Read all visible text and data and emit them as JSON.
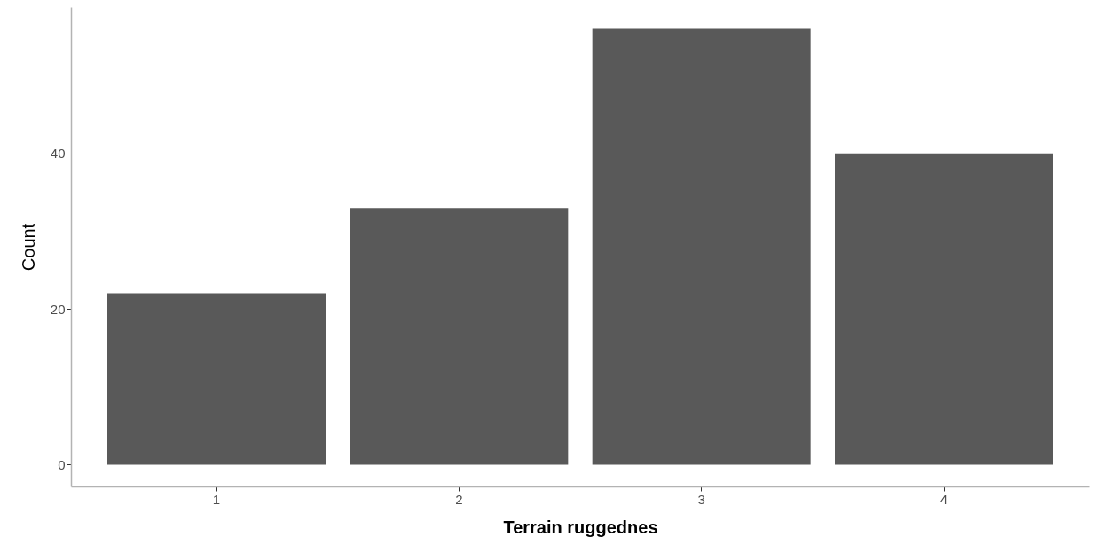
{
  "chart_data": {
    "type": "bar",
    "xlabel": "Terrain ruggednes",
    "ylabel": "Count",
    "categories": [
      "1",
      "2",
      "3",
      "4"
    ],
    "values": [
      22,
      33,
      56,
      40
    ],
    "color": "#595959",
    "ylim": [
      -2.8,
      58.8
    ],
    "yticks": [
      0,
      20,
      40
    ],
    "grid": false
  }
}
